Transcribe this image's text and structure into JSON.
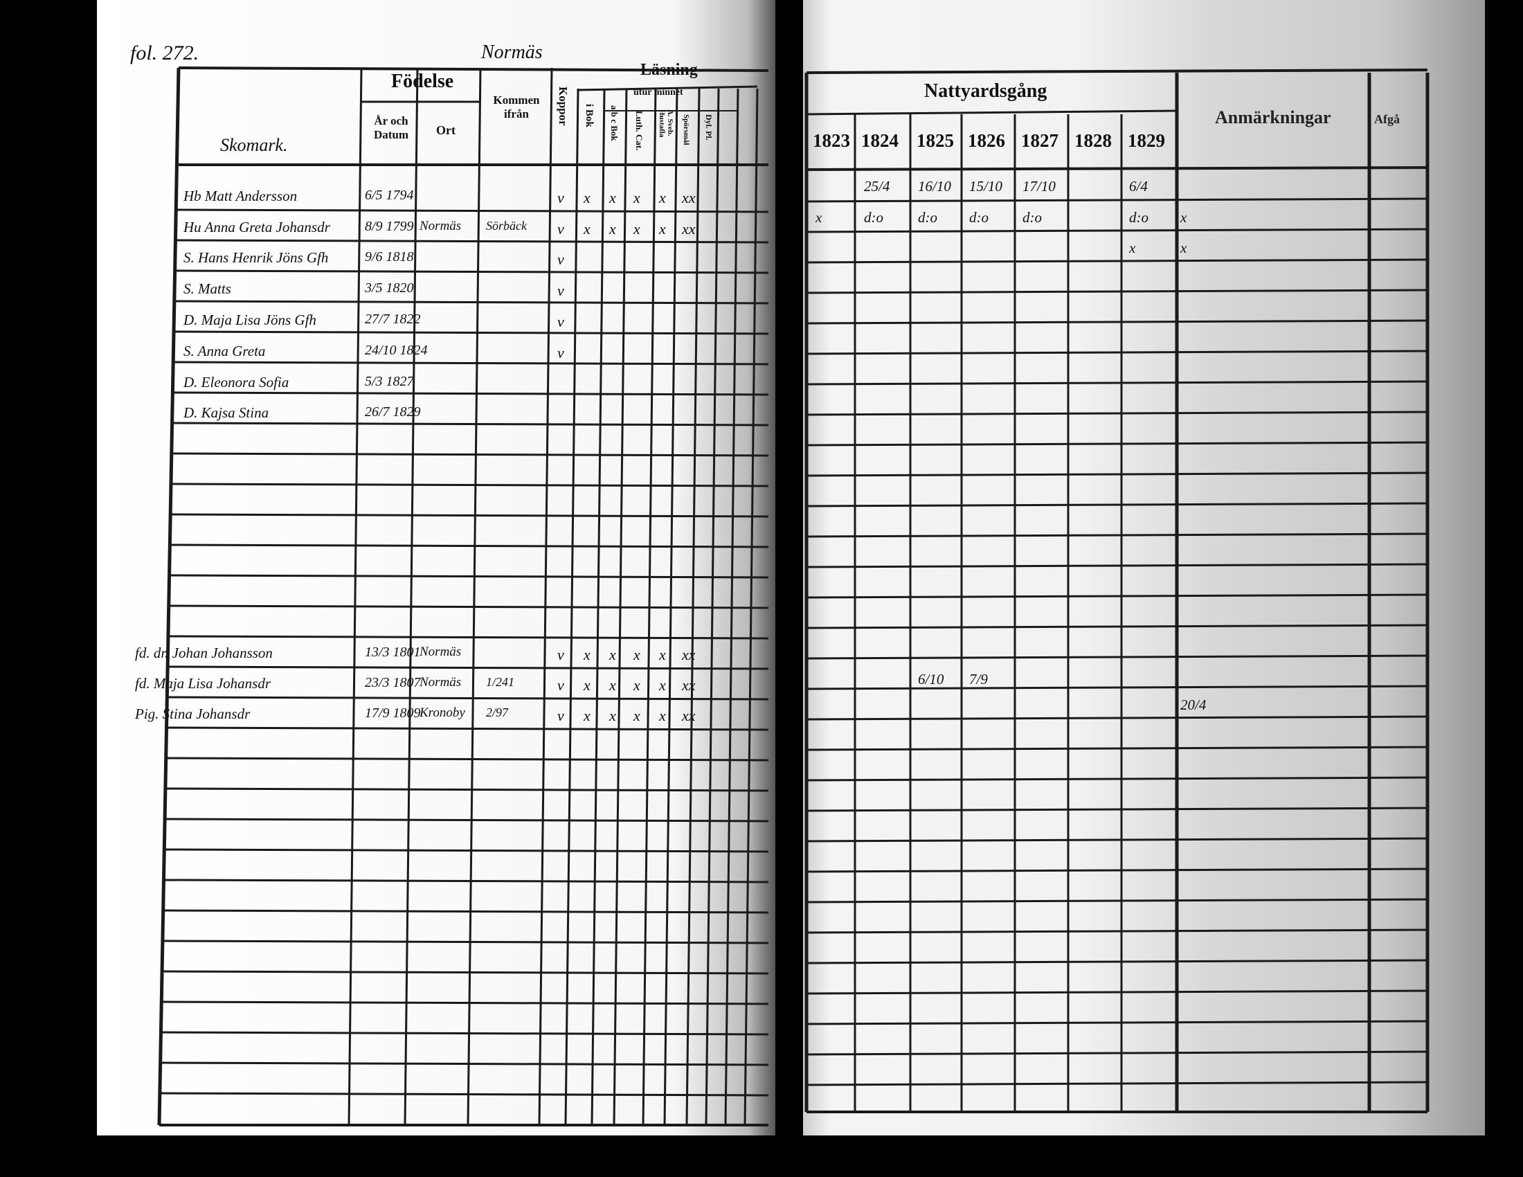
{
  "left_page": {
    "folio": "fol. 272.",
    "village": "Normäs",
    "name_header": "Skomark.",
    "headers": {
      "fodelse": "Födelse",
      "ar_och_datum": "År och Datum",
      "ort": "Ort",
      "kommen_ifran": "Kommen ifrån",
      "koppor": "Koppor",
      "lasning": "Läsning",
      "utur_minnet": "utur minnet",
      "i_bok": "i Bok",
      "abc_bok": "a b c Bok",
      "luth_cat": "Luth. Cat.",
      "sveb": "A. Sveb. Hustafla",
      "sporsmal": "Spörsmål",
      "dyl": "Dyl. Pl."
    },
    "entries": [
      {
        "name": "Hb Matt Andersson",
        "date": "6/5 1794",
        "ort": "",
        "from": "",
        "marks": [
          "v",
          "x",
          "x",
          "x",
          "x",
          "xx"
        ]
      },
      {
        "name": "Hu Anna Greta Johansdr",
        "date": "8/9 1799",
        "ort": "Normäs",
        "from": "Sörbäck",
        "marks": [
          "v",
          "x",
          "x",
          "x",
          "x",
          "xx"
        ]
      },
      {
        "name": "S. Hans Henrik Jöns Gfh",
        "date": "9/6 1818",
        "ort": "",
        "from": "",
        "marks": [
          "v"
        ]
      },
      {
        "name": "S. Matts",
        "date": "3/5 1820",
        "ort": "",
        "from": "",
        "marks": [
          "v"
        ]
      },
      {
        "name": "D. Maja Lisa Jöns Gfh",
        "date": "27/7 1822",
        "ort": "",
        "from": "",
        "marks": [
          "v"
        ]
      },
      {
        "name": "S. Anna Greta",
        "date": "24/10 1824",
        "ort": "",
        "from": "",
        "marks": [
          "v"
        ]
      },
      {
        "name": "D. Eleonora Sofia",
        "date": "5/3 1827",
        "ort": "",
        "from": "",
        "marks": []
      },
      {
        "name": "D. Kajsa Stina",
        "date": "26/7 1829",
        "ort": "",
        "from": "",
        "marks": []
      }
    ],
    "lower_entries": [
      {
        "name": "fd. dr. Johan Johansson",
        "date": "13/3 1801",
        "ort": "Normäs",
        "from": "",
        "marks": [
          "v",
          "x",
          "x",
          "x",
          "x",
          "xx"
        ]
      },
      {
        "name": "fd. Maja Lisa Johansdr",
        "date": "23/3 1807",
        "ort": "Normäs",
        "from": "1/241",
        "marks": [
          "v",
          "x",
          "x",
          "x",
          "x",
          "xx"
        ]
      },
      {
        "name": "Pig. Stina Johansdr",
        "date": "17/9 1809",
        "ort": "Kronoby",
        "from": "2/97",
        "marks": [
          "v",
          "x",
          "x",
          "x",
          "x",
          "xx"
        ]
      }
    ]
  },
  "right_page": {
    "headers": {
      "nattvard": "Nattyardsgång",
      "years": [
        "1823",
        "1824",
        "1825",
        "1826",
        "1827",
        "1828",
        "1829"
      ],
      "anmarkningar": "Anmärkningar",
      "afgatt": "Afgå"
    },
    "rows": [
      {
        "cells": [
          "",
          "25/4",
          "16/10",
          "15/10",
          "17/10",
          "",
          "6/4"
        ],
        "note": ""
      },
      {
        "cells": [
          "x",
          "d:o",
          "d:o",
          "d:o",
          "d:o",
          "",
          "d:o"
        ],
        "note": "x"
      },
      {
        "cells": [
          "",
          "",
          "",
          "",
          "",
          "",
          "x"
        ],
        "note": "x"
      }
    ],
    "lower_rows": [
      {
        "cells": [
          "",
          "",
          "6/10",
          "7/9",
          "",
          "",
          ""
        ],
        "note": ""
      },
      {
        "cells": [
          "",
          "",
          "",
          "",
          "",
          "",
          ""
        ],
        "note": "20/4"
      }
    ]
  }
}
